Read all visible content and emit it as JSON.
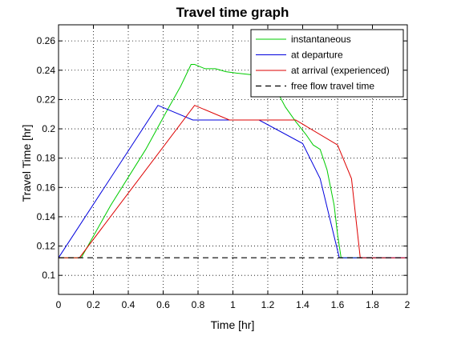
{
  "chart_data": {
    "type": "line",
    "title": "Travel time graph",
    "xlabel": "Time [hr]",
    "ylabel": "Travel Time [hr]",
    "xlim": [
      0,
      2
    ],
    "ylim": [
      0.087,
      0.271
    ],
    "xticks": [
      0,
      0.2,
      0.4,
      0.6,
      0.8,
      1,
      1.2,
      1.4,
      1.6,
      1.8,
      2
    ],
    "xtick_labels": [
      "0",
      "0.2",
      "0.4",
      "0.6",
      "0.8",
      "1",
      "1.2",
      "1.4",
      "1.6",
      "1.8",
      "2"
    ],
    "yticks": [
      0.1,
      0.12,
      0.14,
      0.16,
      0.18,
      0.2,
      0.22,
      0.24,
      0.26
    ],
    "ytick_labels": [
      "0.1",
      "0.12",
      "0.14",
      "0.16",
      "0.18",
      "0.2",
      "0.22",
      "0.24",
      "0.26"
    ],
    "grid": true,
    "legend_position": "top-right",
    "series": [
      {
        "name": "instantaneous",
        "color": "#00cc00",
        "dash": "solid",
        "points": [
          [
            0,
            0.112
          ],
          [
            0.13,
            0.112
          ],
          [
            0.3,
            0.148
          ],
          [
            0.5,
            0.186
          ],
          [
            0.62,
            0.212
          ],
          [
            0.7,
            0.229
          ],
          [
            0.76,
            0.244
          ],
          [
            0.78,
            0.244
          ],
          [
            0.8,
            0.243
          ],
          [
            0.84,
            0.241
          ],
          [
            0.9,
            0.241
          ],
          [
            0.96,
            0.239
          ],
          [
            1.02,
            0.238
          ],
          [
            1.1,
            0.237
          ],
          [
            1.18,
            0.234
          ],
          [
            1.22,
            0.232
          ],
          [
            1.26,
            0.224
          ],
          [
            1.3,
            0.215
          ],
          [
            1.36,
            0.205
          ],
          [
            1.42,
            0.196
          ],
          [
            1.46,
            0.189
          ],
          [
            1.5,
            0.186
          ],
          [
            1.54,
            0.172
          ],
          [
            1.58,
            0.148
          ],
          [
            1.6,
            0.128
          ],
          [
            1.62,
            0.112
          ],
          [
            1.88,
            0.112
          ]
        ]
      },
      {
        "name": "at departure",
        "color": "#0000dd",
        "dash": "solid",
        "points": [
          [
            0,
            0.112
          ],
          [
            0.57,
            0.216
          ],
          [
            0.77,
            0.206
          ],
          [
            1.15,
            0.206
          ],
          [
            1.4,
            0.19
          ],
          [
            1.5,
            0.166
          ],
          [
            1.61,
            0.112
          ],
          [
            2,
            0.112
          ]
        ]
      },
      {
        "name": "at arrival (experienced)",
        "color": "#dd0000",
        "dash": "solid",
        "points": [
          [
            0,
            0.112
          ],
          [
            0.12,
            0.112
          ],
          [
            0.78,
            0.216
          ],
          [
            0.98,
            0.206
          ],
          [
            1.36,
            0.206
          ],
          [
            1.6,
            0.189
          ],
          [
            1.68,
            0.166
          ],
          [
            1.73,
            0.112
          ],
          [
            2,
            0.112
          ]
        ]
      },
      {
        "name": "free flow travel time",
        "color": "#000000",
        "dash": "dashed",
        "points": [
          [
            0,
            0.112
          ],
          [
            2,
            0.112
          ]
        ]
      }
    ]
  }
}
